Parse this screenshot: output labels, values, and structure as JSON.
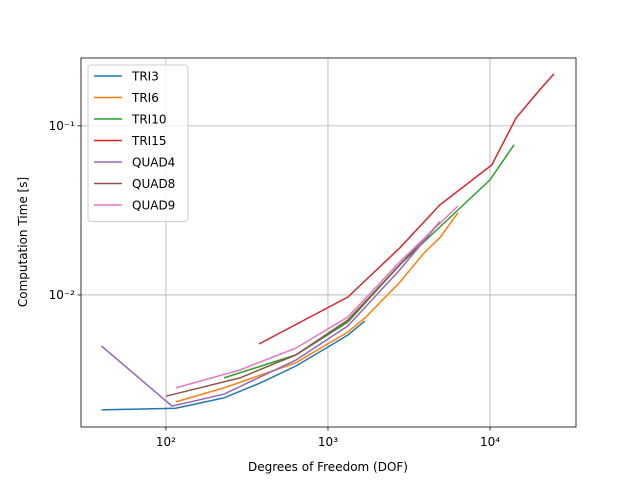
{
  "chart_data": {
    "type": "line",
    "xlabel": "Degrees of Freedom (DOF)",
    "ylabel": "Computation Time [s]",
    "xscale": "log",
    "yscale": "log",
    "grid": true,
    "legend": "upper left",
    "xlim": [
      29.9,
      33950
    ],
    "ylim": [
      0.001656,
      0.252
    ],
    "xticks": [
      {
        "value": 100,
        "label": "10²"
      },
      {
        "value": 1000,
        "label": "10³"
      },
      {
        "value": 10000,
        "label": "10⁴"
      }
    ],
    "yticks": [
      {
        "value": 0.01,
        "label": "10⁻²"
      },
      {
        "value": 0.1,
        "label": "10⁻¹"
      }
    ],
    "series": [
      {
        "name": "TRI3",
        "color": "#1f77b4",
        "x": [
          40,
          115,
          228,
          380,
          634,
          1000,
          1328,
          1690
        ],
        "values": [
          0.00209,
          0.00214,
          0.00246,
          0.00301,
          0.0038,
          0.00492,
          0.0058,
          0.00702
        ]
      },
      {
        "name": "TRI6",
        "color": "#ff7f0e",
        "x": [
          115,
          228,
          634,
          1328,
          1690,
          2780,
          3916,
          4910,
          6340
        ],
        "values": [
          0.00233,
          0.00282,
          0.00397,
          0.00604,
          0.00731,
          0.0119,
          0.0177,
          0.0218,
          0.0306
        ]
      },
      {
        "name": "TRI10",
        "color": "#2ca02c",
        "x": [
          228,
          634,
          1328,
          2780,
          6340,
          10000,
          14060
        ],
        "values": [
          0.00323,
          0.00442,
          0.00692,
          0.0151,
          0.0318,
          0.0479,
          0.0773
        ]
      },
      {
        "name": "TRI15",
        "color": "#d62728",
        "x": [
          375,
          1328,
          2780,
          4910,
          10280,
          14450,
          19800,
          24800
        ],
        "values": [
          0.00513,
          0.00973,
          0.019,
          0.0341,
          0.0588,
          0.111,
          0.159,
          0.203
        ]
      },
      {
        "name": "QUAD4",
        "color": "#9467bd",
        "x": [
          40,
          109,
          228,
          634,
          1328,
          2780,
          4910
        ],
        "values": [
          0.00499,
          0.0022,
          0.00259,
          0.00412,
          0.00656,
          0.0141,
          0.027
        ]
      },
      {
        "name": "QUAD8",
        "color": "#8c564b",
        "x": [
          100,
          286,
          634,
          1328,
          2780,
          4910
        ],
        "values": [
          0.00252,
          0.00323,
          0.00442,
          0.00711,
          0.0151,
          0.027
        ]
      },
      {
        "name": "QUAD9",
        "color": "#e377c2",
        "x": [
          115,
          286,
          634,
          1328,
          2780,
          6340
        ],
        "values": [
          0.00282,
          0.0036,
          0.00485,
          0.00741,
          0.0157,
          0.0336
        ]
      }
    ]
  }
}
